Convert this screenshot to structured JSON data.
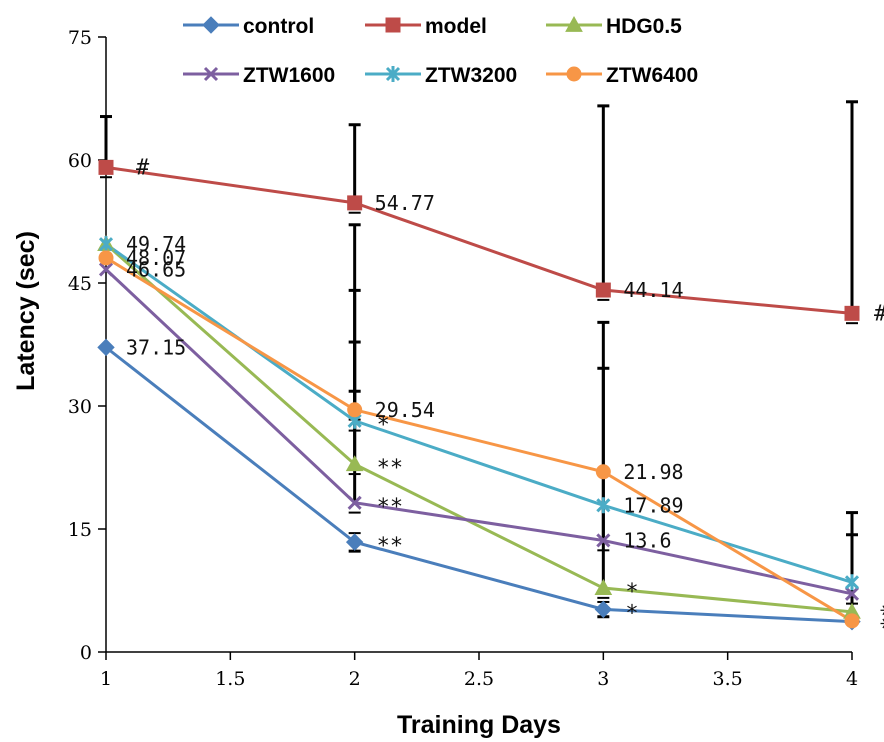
{
  "chart_data": {
    "type": "line",
    "title": "",
    "xlabel": "Training Days",
    "ylabel": "Latency (sec)",
    "xlim": [
      1,
      4
    ],
    "ylim": [
      0,
      75
    ],
    "xticks": [
      "1",
      "1.5",
      "2",
      "2.5",
      "3",
      "3.5",
      "4"
    ],
    "yticks": [
      "0",
      "15",
      "30",
      "45",
      "60",
      "75"
    ],
    "grid": false,
    "legend_position": "top",
    "x": [
      1,
      2,
      3,
      4
    ],
    "series": [
      {
        "name": "control",
        "color": "#4a7ebb",
        "marker": "diamond",
        "values": [
          37.15,
          13.4,
          5.2,
          3.7
        ],
        "err_up": [
          null,
          12.3,
          4.3,
          null
        ]
      },
      {
        "name": "model",
        "color": "#be4b48",
        "marker": "square",
        "values": [
          59.1,
          54.77,
          44.14,
          41.3
        ],
        "err_up": [
          65.3,
          64.3,
          66.6,
          67.1
        ]
      },
      {
        "name": "HDG0.5",
        "color": "#98b954",
        "marker": "triangle",
        "values": [
          49.74,
          22.9,
          7.8,
          4.9
        ],
        "err_up": [
          null,
          52.1,
          34.6,
          14.3
        ]
      },
      {
        "name": "ZTW1600",
        "color": "#7d5fa0",
        "marker": "x",
        "values": [
          46.65,
          18.2,
          13.6,
          7.1
        ],
        "err_up": [
          null,
          37.8,
          40.2,
          17.0
        ]
      },
      {
        "name": "ZTW3200",
        "color": "#4bacc6",
        "marker": "star",
        "values": [
          49.74,
          28.2,
          17.89,
          8.5
        ],
        "err_up": [
          null,
          44.1,
          null,
          null
        ]
      },
      {
        "name": "ZTW6400",
        "color": "#f79646",
        "marker": "circle",
        "values": [
          48.07,
          29.54,
          21.98,
          3.8
        ],
        "err_up": [
          null,
          31.8,
          null,
          null
        ]
      }
    ],
    "annotations": [
      {
        "text": "#",
        "x": 1,
        "y": 59.1,
        "series": "model"
      },
      {
        "text": "54.77",
        "x": 2,
        "y": 54.77
      },
      {
        "text": "44.14",
        "x": 3,
        "y": 44.14
      },
      {
        "text": "#",
        "x": 4,
        "y": 41.3,
        "series": "model"
      },
      {
        "text": "49.74",
        "x": 1,
        "y": 49.74
      },
      {
        "text": "48.07",
        "x": 1,
        "y": 48.07
      },
      {
        "text": "46.65",
        "x": 1,
        "y": 46.65
      },
      {
        "text": "37.15",
        "x": 1,
        "y": 37.15
      },
      {
        "text": "29.54",
        "x": 2,
        "y": 29.54
      },
      {
        "text": "*",
        "x": 2,
        "y": 28.2,
        "series": "ZTW3200"
      },
      {
        "text": "**",
        "x": 2,
        "y": 22.9,
        "series": "HDG0.5"
      },
      {
        "text": "**",
        "x": 2,
        "y": 18.2,
        "series": "ZTW1600"
      },
      {
        "text": "**",
        "x": 2,
        "y": 13.4,
        "series": "control"
      },
      {
        "text": "21.98",
        "x": 3,
        "y": 21.98
      },
      {
        "text": "17.89",
        "x": 3,
        "y": 17.89
      },
      {
        "text": "13.6",
        "x": 3,
        "y": 13.6
      },
      {
        "text": "*",
        "x": 3,
        "y": 7.8,
        "series": "HDG0.5"
      },
      {
        "text": "*",
        "x": 3,
        "y": 5.2,
        "series": "control"
      },
      {
        "text": "**",
        "x": 4,
        "y": 3.7,
        "series": "control",
        "vertical": true
      }
    ]
  }
}
